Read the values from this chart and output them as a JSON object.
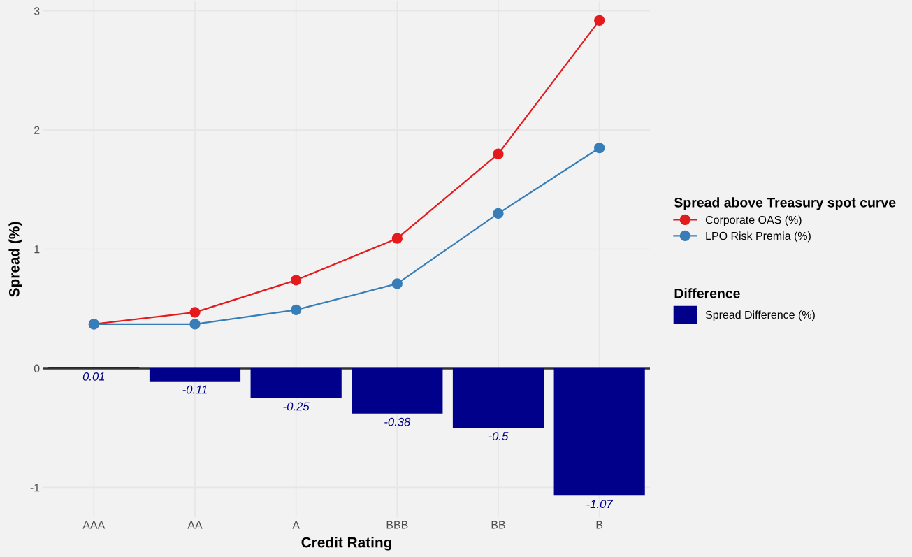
{
  "chart_data": {
    "type": "bar",
    "xlabel": "Credit Rating",
    "ylabel": "Spread (%)",
    "categories": [
      "AAA",
      "AA",
      "A",
      "BBB",
      "BB",
      "B"
    ],
    "series": [
      {
        "name": "Spread Difference (%)",
        "color": "#00008b",
        "values": [
          0.01,
          -0.11,
          -0.25,
          -0.38,
          -0.5,
          -1.07
        ],
        "value_labels": [
          "0.01",
          "-0.11",
          "-0.25",
          "-0.38",
          "-0.5",
          "-1.07"
        ]
      },
      {
        "name": "Corporate OAS (%)",
        "type": "line",
        "color": "#e41a1c",
        "values": [
          0.37,
          0.47,
          0.74,
          1.09,
          1.8,
          2.92
        ]
      },
      {
        "name": "LPO Risk Premia (%)",
        "type": "line",
        "color": "#377eb8",
        "values": [
          0.37,
          0.37,
          0.49,
          0.71,
          1.3,
          1.85
        ]
      }
    ],
    "legend_title": [
      "Spread above Treasury spot curve",
      "Difference"
    ],
    "marker": "circle",
    "grid": true,
    "legend": "right",
    "ylim": [
      -1.25,
      3.08
    ],
    "yticks": [
      -1,
      0,
      1,
      2,
      3
    ],
    "ref_lines": [
      {
        "axis": "y",
        "value": 0,
        "color": "#333333"
      }
    ]
  }
}
